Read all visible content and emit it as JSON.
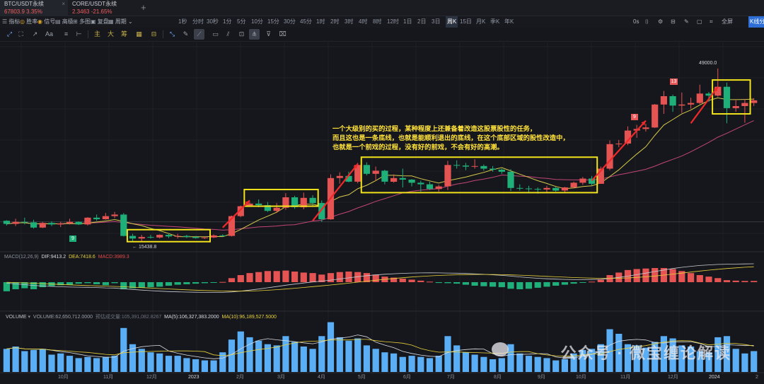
{
  "tabs": [
    {
      "name": "BTC/USDT永续",
      "price": "67803.9",
      "change": "3.35%",
      "close": "×"
    },
    {
      "name": "CORE/USDT永续",
      "price": "2.3463",
      "change": "-21.65%"
    }
  ],
  "tab_add": "+",
  "toolbar": {
    "left": [
      {
        "icon": "list-icon",
        "glyph": "☰",
        "label": "指标"
      },
      {
        "icon": "rate-icon",
        "glyph": "◎",
        "label": "胜率"
      },
      {
        "icon": "signal-icon",
        "glyph": "◉",
        "label": "信号"
      },
      {
        "icon": "advanced-icon",
        "glyph": "▤",
        "label": "高级"
      },
      {
        "icon": "multi-chart-icon",
        "glyph": "⊞",
        "label": "多图"
      },
      {
        "icon": "replay-icon",
        "glyph": "▣",
        "label": "复盘"
      },
      {
        "icon": "period-icon",
        "glyph": "▦",
        "label": "周期 ⌄"
      }
    ],
    "intervals": [
      "1秒",
      "分时",
      "30秒",
      "1分",
      "5分",
      "10分",
      "15分",
      "30分",
      "45分",
      "1时",
      "2时",
      "3时",
      "4时",
      "8时",
      "12时",
      "1日",
      "2日",
      "3日",
      "周K",
      "15日",
      "月K",
      "季K",
      "年K"
    ],
    "active_interval": "周K",
    "right": {
      "time": "0s",
      "fullscreen": "全屏",
      "exchange": "K线分"
    }
  },
  "drawbar": {
    "text_tools": [
      "Aa",
      "主",
      "大",
      "筹"
    ]
  },
  "price_labels": {
    "high": "49000.0",
    "low": "← 15438.8"
  },
  "markers": [
    {
      "text": "9",
      "color": "#1fb07a"
    },
    {
      "text": "9",
      "color": "#e85a5a"
    },
    {
      "text": "13",
      "color": "#e85a5a"
    }
  ],
  "macd": {
    "title": "MACD(12,26,9)",
    "dif": "DIF:9413.2",
    "dea": "DEA:7418.6",
    "macd": "MACD:3989.3"
  },
  "volume": {
    "title": "VOLUME",
    "vol": "VOLUME:62,650,712.0000",
    "est": "预估成交量:105,391,082.8267",
    "ma5": "MA(5):106,327,383.2000",
    "ma10": "MA(10):96,189,527.5000"
  },
  "x_labels": [
    "10月",
    "11月",
    "12月",
    "2023",
    "2月",
    "3月",
    "4月",
    "5月",
    "6月",
    "7月",
    "8月",
    "9月",
    "10月",
    "11月",
    "12月",
    "2024",
    "2"
  ],
  "annotation": [
    "一个大级别的买的过程，某种程度上还兼备着改造这股票股性的任务，",
    "而且这也是一条底线，也就是能顺利退出的底线，在这个底部区域的股性改造中，",
    "也就是一个前戏的过程，没有好的前戏，不会有好的高潮。"
  ],
  "watermark": "公众号 · 微宝缠论解读",
  "colors": {
    "up": "#e55353",
    "down": "#1fb07a",
    "box": "#f2e21c",
    "arrow": "#ee2a2a",
    "ma1": "#d6c94a",
    "ma2": "#c2457a",
    "vol": "#5aaef5"
  },
  "chart_data": {
    "type": "candlestick",
    "price_candles": [
      [
        19800,
        19900,
        18900,
        19200
      ],
      [
        19200,
        20200,
        18800,
        19600
      ],
      [
        19600,
        20400,
        19100,
        19500
      ],
      [
        19500,
        20000,
        18300,
        18500
      ],
      [
        18500,
        19600,
        18400,
        19400
      ],
      [
        19400,
        19700,
        18800,
        19100
      ],
      [
        19100,
        19600,
        18600,
        19300
      ],
      [
        19300,
        20200,
        19100,
        19600
      ],
      [
        19600,
        19700,
        19000,
        19100
      ],
      [
        19100,
        20500,
        18900,
        20400
      ],
      [
        20400,
        21000,
        19800,
        20100
      ],
      [
        20100,
        21300,
        20000,
        20700
      ],
      [
        20700,
        21500,
        20300,
        21000
      ],
      [
        21000,
        21300,
        16800,
        16900
      ],
      [
        16900,
        17300,
        15900,
        16400
      ],
      [
        16400,
        17100,
        15800,
        16700
      ],
      [
        16700,
        17100,
        16400,
        16600
      ],
      [
        16600,
        17200,
        16400,
        17100
      ],
      [
        17100,
        17400,
        16500,
        16800
      ],
      [
        16800,
        17300,
        16400,
        16900
      ],
      [
        16900,
        17100,
        16500,
        16700
      ],
      [
        16700,
        16900,
        16400,
        16500
      ],
      [
        16500,
        16800,
        16300,
        16600
      ],
      [
        16600,
        17200,
        16500,
        17000
      ],
      [
        17000,
        17200,
        16800,
        16900
      ],
      [
        16900,
        20800,
        16800,
        20700
      ],
      [
        20700,
        22700,
        20500,
        22600
      ],
      [
        22600,
        23400,
        22500,
        23100
      ],
      [
        23100,
        23900,
        22400,
        22800
      ],
      [
        22800,
        23400,
        21500,
        21700
      ],
      [
        21700,
        23200,
        21300,
        22300
      ],
      [
        22300,
        25100,
        21900,
        24300
      ],
      [
        24300,
        24600,
        22100,
        22400
      ],
      [
        22400,
        25200,
        22000,
        24200
      ],
      [
        24200,
        24700,
        22700,
        23200
      ],
      [
        23200,
        23700,
        19600,
        20100
      ],
      [
        20100,
        28700,
        20000,
        28000
      ],
      [
        28000,
        29100,
        26900,
        28400
      ],
      [
        28400,
        29200,
        27200,
        27300
      ],
      [
        27300,
        30900,
        27000,
        30500
      ],
      [
        30500,
        31000,
        28500,
        28800
      ],
      [
        28800,
        30200,
        27500,
        29400
      ],
      [
        29400,
        29600,
        26800,
        27300
      ],
      [
        27300,
        28700,
        27100,
        28000
      ],
      [
        28000,
        29800,
        26200,
        27700
      ],
      [
        27700,
        27800,
        26400,
        27100
      ],
      [
        27100,
        27500,
        25400,
        26800
      ],
      [
        26800,
        27300,
        25700,
        25900
      ],
      [
        25900,
        26700,
        25400,
        26400
      ],
      [
        26400,
        31300,
        25700,
        30500
      ],
      [
        30500,
        31400,
        29800,
        30400
      ],
      [
        30400,
        30900,
        29500,
        30200
      ],
      [
        30200,
        31600,
        29800,
        30300
      ],
      [
        30300,
        30600,
        29400,
        29800
      ],
      [
        29800,
        30300,
        29200,
        29600
      ],
      [
        29600,
        29800,
        28800,
        29200
      ],
      [
        29200,
        29700,
        25500,
        26100
      ],
      [
        26100,
        26800,
        25600,
        26000
      ],
      [
        26000,
        26500,
        25300,
        25900
      ],
      [
        25900,
        26200,
        25000,
        25800
      ],
      [
        25800,
        26500,
        25100,
        26100
      ],
      [
        26100,
        26300,
        25400,
        25600
      ],
      [
        25600,
        26300,
        25300,
        26200
      ],
      [
        26200,
        27300,
        26000,
        27100
      ],
      [
        27100,
        28200,
        26700,
        27900
      ],
      [
        27900,
        28400,
        26600,
        26900
      ],
      [
        26900,
        30200,
        26900,
        29800
      ],
      [
        29800,
        35200,
        29500,
        34500
      ],
      [
        34500,
        35300,
        33900,
        34600
      ],
      [
        34600,
        37900,
        34300,
        37100
      ],
      [
        37100,
        38200,
        35700,
        37400
      ],
      [
        37400,
        38400,
        36900,
        37700
      ],
      [
        37700,
        42200,
        37600,
        42100
      ],
      [
        42100,
        44700,
        40300,
        43700
      ],
      [
        43700,
        44000,
        40700,
        41900
      ],
      [
        41900,
        44400,
        40500,
        42100
      ],
      [
        42100,
        43400,
        41300,
        42400
      ],
      [
        42400,
        45900,
        42200,
        44200
      ],
      [
        44200,
        44500,
        42600,
        43800
      ],
      [
        43800,
        49000,
        43600,
        45500
      ],
      [
        45500,
        46300,
        38500,
        41400
      ],
      [
        41400,
        42900,
        40700,
        41800
      ],
      [
        41800,
        43100,
        38600,
        42400
      ],
      [
        42400,
        43300,
        41800,
        42900
      ]
    ],
    "macd_histogram": [
      -900,
      -700,
      -600,
      -700,
      -500,
      -400,
      -300,
      -250,
      -150,
      -100,
      -200,
      -300,
      -100,
      -700,
      -600,
      -550,
      -500,
      -450,
      -350,
      -250,
      -200,
      -150,
      -100,
      -50,
      20,
      400,
      700,
      900,
      1000,
      1100,
      1100,
      1150,
      1050,
      950,
      900,
      750,
      900,
      1000,
      1050,
      1000,
      900,
      750,
      550,
      450,
      350,
      250,
      150,
      50,
      -80,
      -100,
      -150,
      -250,
      -350,
      -400,
      -450,
      -500,
      -650,
      -700,
      -650,
      -550,
      -450,
      -350,
      -250,
      -150,
      -50,
      50,
      250,
      700,
      950,
      1200,
      1300,
      1350,
      1400,
      1400,
      1300,
      1100,
      900,
      700,
      550,
      400,
      200,
      150,
      120,
      120
    ],
    "volume": [
      200,
      220,
      180,
      190,
      200,
      150,
      160,
      140,
      120,
      130,
      120,
      130,
      140,
      380,
      240,
      200,
      170,
      160,
      140,
      140,
      120,
      110,
      100,
      100,
      170,
      280,
      350,
      300,
      270,
      240,
      230,
      310,
      260,
      220,
      200,
      310,
      430,
      300,
      270,
      290,
      230,
      200,
      170,
      160,
      130,
      140,
      130,
      120,
      140,
      310,
      230,
      170,
      150,
      130,
      110,
      120,
      240,
      160,
      140,
      130,
      120,
      100,
      110,
      160,
      190,
      200,
      240,
      370,
      330,
      240,
      230,
      210,
      260,
      310,
      290,
      230,
      220,
      180,
      170,
      300,
      310,
      200,
      160,
      180
    ]
  }
}
